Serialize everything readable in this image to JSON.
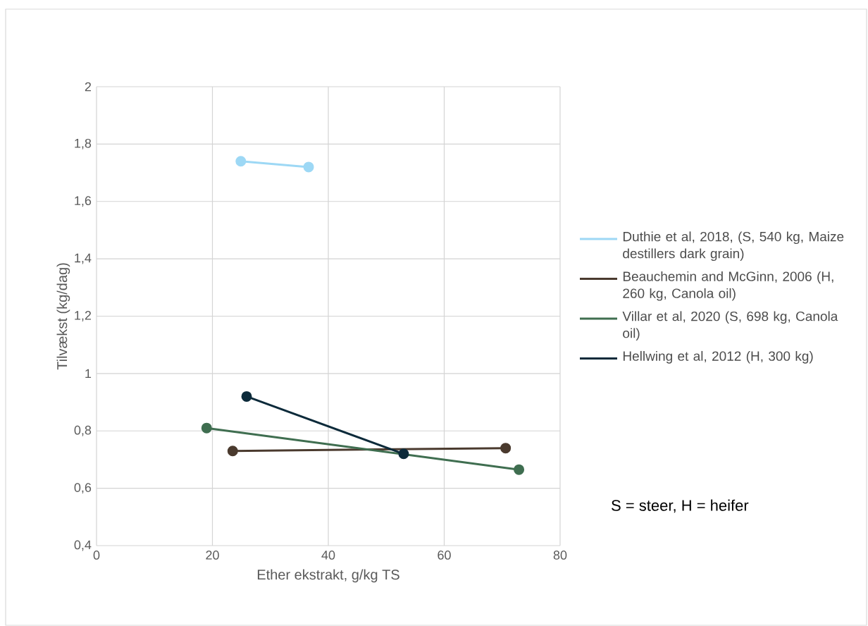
{
  "chart_data": {
    "type": "line",
    "xlabel": "Ether ekstrakt, g/kg TS",
    "ylabel": "Tilvækst (kg/dag)",
    "xlim": [
      0,
      80
    ],
    "xticks": [
      0,
      20,
      40,
      60,
      80
    ],
    "ylim": [
      0.4,
      2
    ],
    "yticks": [
      {
        "value": 0.4,
        "label": "0,4"
      },
      {
        "value": 0.6,
        "label": "0,6"
      },
      {
        "value": 0.8,
        "label": "0,8"
      },
      1,
      {
        "value": 1.2,
        "label": "1,2"
      },
      {
        "value": 1.4,
        "label": "1,4"
      },
      {
        "value": 1.6,
        "label": "1,6"
      },
      {
        "value": 1.8,
        "label": "1,8"
      },
      2
    ],
    "grid": true,
    "legend": "right",
    "marker": "circle",
    "line_style": "solid",
    "series": [
      {
        "name": "Duthie et al, 2018, (S, 540 kg, Maize destillers dark grain)",
        "color": "#9dd8f5",
        "x": [
          24.9,
          36.6
        ],
        "values": [
          1.74,
          1.72
        ]
      },
      {
        "name": "Beauchemin and McGinn, 2006 (H, 260 kg, Canola oil)",
        "color": "#4a3a2e",
        "x": [
          23.5,
          70.6
        ],
        "values": [
          0.73,
          0.74
        ]
      },
      {
        "name": "Villar et al, 2020 (S, 698 kg, Canola oil)",
        "color": "#3f6e50",
        "x": [
          19.0,
          72.9
        ],
        "values": [
          0.81,
          0.665
        ]
      },
      {
        "name": "Hellwing et al, 2012 (H, 300 kg)",
        "color": "#0c2a3a",
        "x": [
          25.9,
          53.0
        ],
        "values": [
          0.92,
          0.72
        ]
      }
    ],
    "annotations": [
      "S = steer, H = heifer"
    ]
  }
}
